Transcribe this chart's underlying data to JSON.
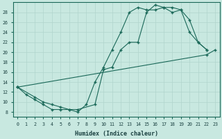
{
  "bg_color": "#c8e8e0",
  "grid_color": "#b0d4cc",
  "line_color": "#1a6858",
  "xlabel": "Humidex (Indice chaleur)",
  "xlim": [
    -0.5,
    23.5
  ],
  "ylim": [
    7,
    30
  ],
  "xticks": [
    0,
    1,
    2,
    3,
    4,
    5,
    6,
    7,
    8,
    9,
    10,
    11,
    12,
    13,
    14,
    15,
    16,
    17,
    18,
    19,
    20,
    21,
    22,
    23
  ],
  "yticks": [
    8,
    10,
    12,
    14,
    16,
    18,
    20,
    22,
    24,
    26,
    28
  ],
  "curve1_x": [
    0,
    1,
    2,
    3,
    4,
    5,
    6,
    7,
    8,
    9,
    10,
    11,
    12,
    13,
    14,
    15,
    16,
    17,
    18,
    19,
    20,
    21,
    22
  ],
  "curve1_y": [
    13,
    11.5,
    10.5,
    9.5,
    8.5,
    8.5,
    8.5,
    8,
    9.5,
    14,
    17,
    20.5,
    24,
    28,
    29,
    28.5,
    28.5,
    29,
    29,
    28.5,
    24,
    22,
    20.5
  ],
  "curve2_x": [
    0,
    2,
    3,
    4,
    5,
    6,
    7,
    9,
    10,
    11,
    12,
    13,
    14,
    15,
    16,
    17,
    18,
    19,
    20,
    21,
    22
  ],
  "curve2_y": [
    13,
    11,
    10,
    9.5,
    9,
    8.5,
    8.5,
    9.5,
    16.5,
    17,
    20.5,
    22,
    22,
    28,
    29.5,
    29,
    28,
    28.5,
    26.5,
    22,
    20.5
  ],
  "curve3_x": [
    0,
    22,
    23
  ],
  "curve3_y": [
    13,
    19.5,
    20.5
  ]
}
